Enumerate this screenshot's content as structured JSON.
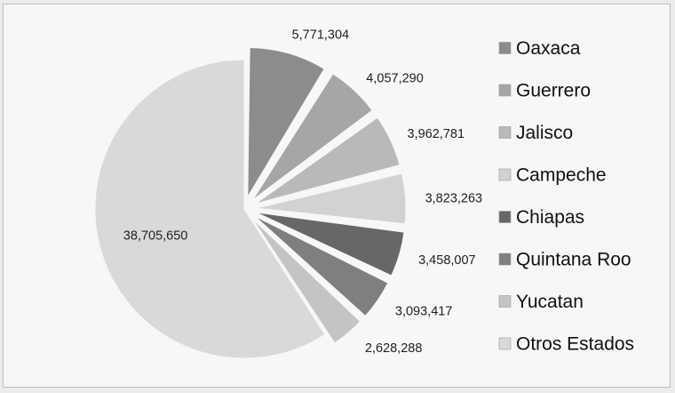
{
  "chart_data": {
    "type": "pie",
    "title": "",
    "categories": [
      "Oaxaca",
      "Guerrero",
      "Jalisco",
      "Campeche",
      "Chiapas",
      "Quintana Roo",
      "Yucatan",
      "Otros Estados"
    ],
    "values": [
      5771304,
      4057290,
      3962781,
      3823263,
      3458007,
      3093417,
      2628288,
      38705650
    ],
    "value_labels": [
      "5,771,304",
      "4,057,290",
      "3,962,781",
      "3,823,263",
      "3,458,007",
      "3,093,417",
      "2,628,288",
      "38,705,650"
    ],
    "colors": [
      "#8c8c8c",
      "#a6a6a6",
      "#b9b9b9",
      "#d2d2d2",
      "#676767",
      "#7f7f7f",
      "#c4c4c4",
      "#d9d9d9"
    ],
    "exploded": [
      true,
      true,
      true,
      true,
      true,
      true,
      true,
      false
    ],
    "legend_position": "right"
  }
}
